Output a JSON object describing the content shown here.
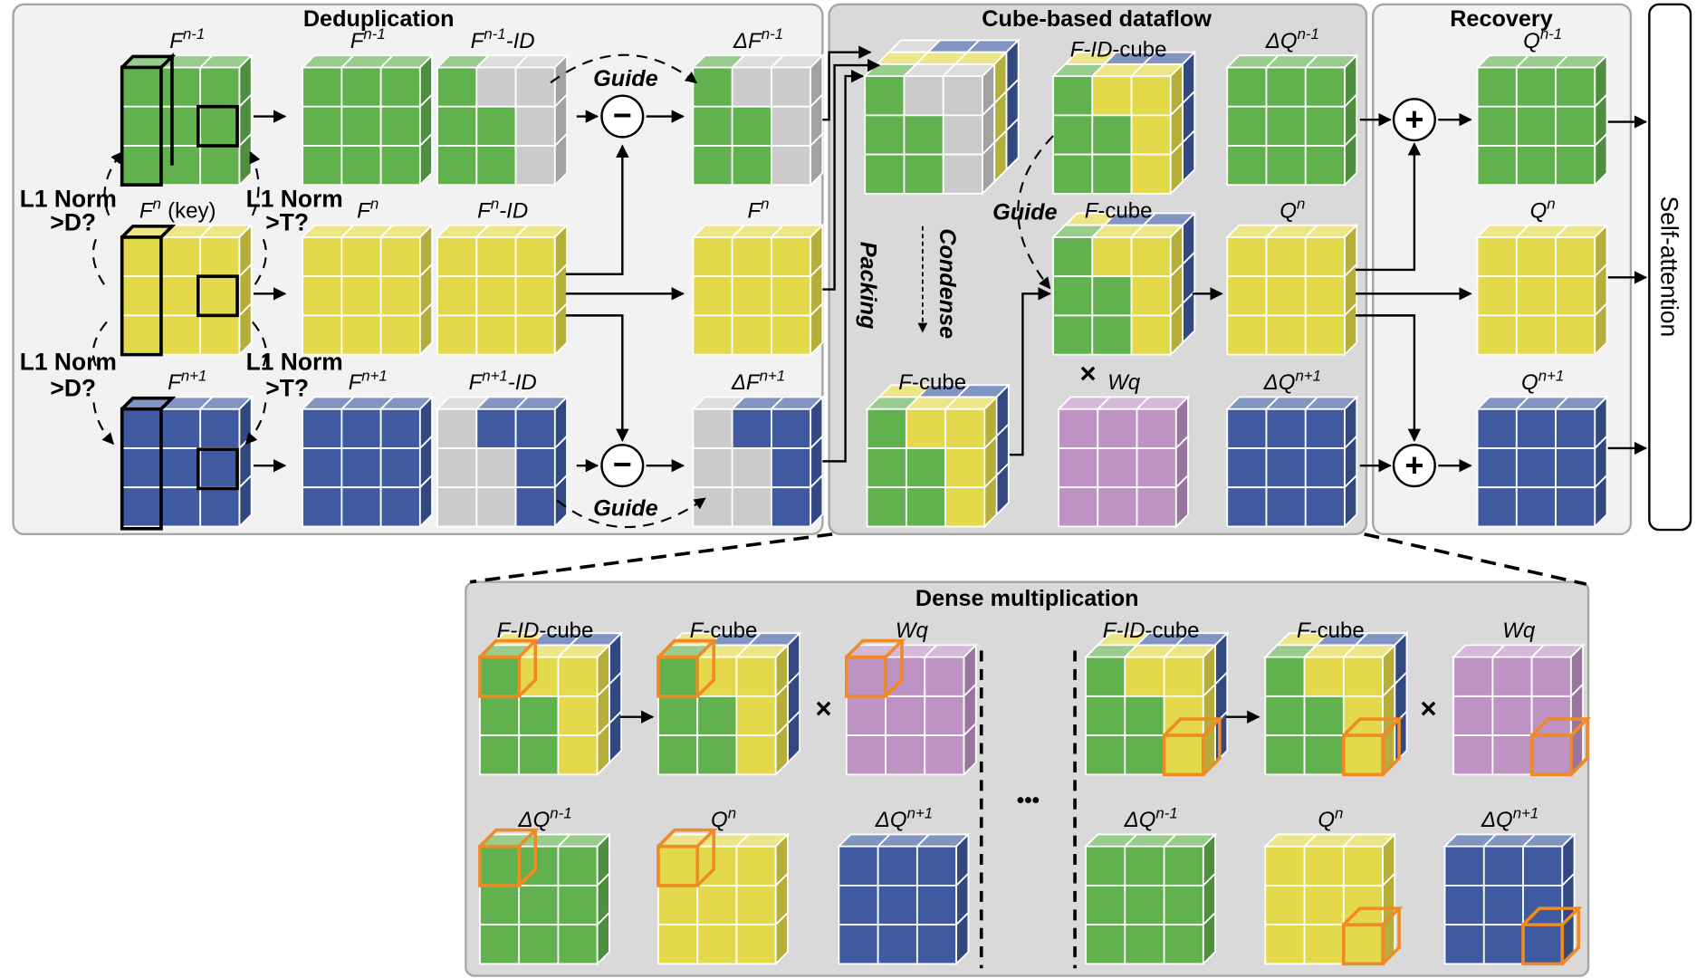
{
  "colors": {
    "G": "#62b14f",
    "Y": "#e3d94a",
    "B": "#3f5aa0",
    "P": "#be93c4",
    "X": "#cbcbcb",
    "highlight": "#f08a24",
    "panel_light": "#f2f2f2",
    "panel_dark": "#d9d9d9"
  },
  "sections": {
    "dedup": "Deduplication",
    "cube": "Cube-based dataflow",
    "recovery": "Recovery",
    "dense": "Dense multiplication",
    "self_attention": "Self-attention"
  },
  "annotations": {
    "l1_top_left": "L1 Norm",
    "l1_top_left_cond": ">D?",
    "l1_top_right": "L1 Norm",
    "l1_top_right_cond": ">T?",
    "l1_bot_left": "L1 Norm",
    "l1_bot_left_cond": ">D?",
    "l1_bot_right": "L1 Norm",
    "l1_bot_right_cond": ">T?",
    "key": "(key)",
    "guide_top": "Guide",
    "guide_bottom": "Guide",
    "guide_cube": "Guide",
    "packing": "Packing",
    "condense": "Condense",
    "minus": "−",
    "plus": "+",
    "times": "×",
    "ellipsis": "•••"
  },
  "cubes": [
    {
      "id": "f_nm1",
      "label": {
        "main": "F",
        "sup": "n-1",
        "tail": ""
      },
      "pattern": [
        "GGG",
        "GGG",
        "GGG"
      ]
    },
    {
      "id": "f_n",
      "label": {
        "main": "F",
        "sup": "n",
        "tail": ""
      },
      "pattern": [
        "YYY",
        "YYY",
        "YYY"
      ]
    },
    {
      "id": "f_np1",
      "label": {
        "main": "F",
        "sup": "n+1",
        "tail": ""
      },
      "pattern": [
        "BBB",
        "BBB",
        "BBB"
      ]
    },
    {
      "id": "f_nm1_b",
      "label": {
        "main": "F",
        "sup": "n-1",
        "tail": ""
      },
      "pattern": [
        "GGG",
        "GGG",
        "GGG"
      ]
    },
    {
      "id": "f_n_b",
      "label": {
        "main": "F",
        "sup": "n",
        "tail": ""
      },
      "pattern": [
        "YYY",
        "YYY",
        "YYY"
      ]
    },
    {
      "id": "f_np1_b",
      "label": {
        "main": "F",
        "sup": "n+1",
        "tail": ""
      },
      "pattern": [
        "BBB",
        "BBB",
        "BBB"
      ]
    },
    {
      "id": "fid_nm1",
      "label": {
        "main": "F",
        "sup": "n-1",
        "tail": "-ID"
      },
      "pattern": [
        "GXX",
        "GGX",
        "GGX"
      ]
    },
    {
      "id": "fid_n",
      "label": {
        "main": "F",
        "sup": "n",
        "tail": "-ID"
      },
      "pattern": [
        "YYY",
        "YYY",
        "YYY"
      ]
    },
    {
      "id": "fid_np1",
      "label": {
        "main": "F",
        "sup": "n+1",
        "tail": "-ID"
      },
      "pattern": [
        "XBB",
        "XXB",
        "XXB"
      ]
    },
    {
      "id": "df_nm1",
      "label": {
        "main": "ΔF",
        "sup": "n-1",
        "tail": ""
      },
      "pattern": [
        "GXX",
        "GGX",
        "GGX"
      ]
    },
    {
      "id": "df_n",
      "label": {
        "main": "F",
        "sup": "n",
        "tail": ""
      },
      "pattern": [
        "YYY",
        "YYY",
        "YYY"
      ]
    },
    {
      "id": "df_np1",
      "label": {
        "main": "ΔF",
        "sup": "n+1",
        "tail": ""
      },
      "pattern": [
        "XBB",
        "XXB",
        "XXB"
      ]
    },
    {
      "id": "packed",
      "label": {
        "main": "",
        "sup": "",
        "tail": ""
      },
      "pattern": [
        "GXX",
        "GGX",
        "GGX"
      ],
      "layers": [
        "YYY",
        "XBB"
      ]
    },
    {
      "id": "fidcube",
      "label": {
        "main": "F-ID",
        "sup": "",
        "tail": "-cube"
      },
      "pattern": [
        "GYY",
        "GGY",
        "GGY"
      ],
      "layers": [
        "YBB"
      ]
    },
    {
      "id": "fcube_mid",
      "label": {
        "main": "F",
        "sup": "",
        "tail": "-cube"
      },
      "pattern": [
        "GYY",
        "GGY",
        "GGY"
      ],
      "layers": [
        "YBB"
      ]
    },
    {
      "id": "fcube_low",
      "label": {
        "main": "F",
        "sup": "",
        "tail": "-cube"
      },
      "pattern": [
        "GYY",
        "GGY",
        "GGY"
      ],
      "layers": [
        "YBB"
      ]
    },
    {
      "id": "wq",
      "label": {
        "main": "Wq",
        "sup": "",
        "tail": ""
      },
      "pattern": [
        "PPP",
        "PPP",
        "PPP"
      ]
    },
    {
      "id": "dq_nm1",
      "label": {
        "main": "ΔQ",
        "sup": "n-1",
        "tail": ""
      },
      "pattern": [
        "GGG",
        "GGG",
        "GGG"
      ]
    },
    {
      "id": "q_n",
      "label": {
        "main": "Q",
        "sup": "n",
        "tail": ""
      },
      "pattern": [
        "YYY",
        "YYY",
        "YYY"
      ]
    },
    {
      "id": "dq_np1",
      "label": {
        "main": "ΔQ",
        "sup": "n+1",
        "tail": ""
      },
      "pattern": [
        "BBB",
        "BBB",
        "BBB"
      ]
    },
    {
      "id": "rq_nm1",
      "label": {
        "main": "Q",
        "sup": "n-1",
        "tail": ""
      },
      "pattern": [
        "GGG",
        "GGG",
        "GGG"
      ]
    },
    {
      "id": "rq_n",
      "label": {
        "main": "Q",
        "sup": "n",
        "tail": ""
      },
      "pattern": [
        "YYY",
        "YYY",
        "YYY"
      ]
    },
    {
      "id": "rq_np1",
      "label": {
        "main": "Q",
        "sup": "n+1",
        "tail": ""
      },
      "pattern": [
        "BBB",
        "BBB",
        "BBB"
      ]
    },
    {
      "id": "d_fid1",
      "label": {
        "main": "F-ID",
        "sup": "",
        "tail": "-cube"
      },
      "pattern": [
        "GYY",
        "GGY",
        "GGY"
      ],
      "layers": [
        "YBB"
      ],
      "hl": "front00"
    },
    {
      "id": "d_fc1",
      "label": {
        "main": "F",
        "sup": "",
        "tail": "-cube"
      },
      "pattern": [
        "GYY",
        "GGY",
        "GGY"
      ],
      "layers": [
        "YBB"
      ],
      "hl": "front00"
    },
    {
      "id": "d_wq1",
      "label": {
        "main": "Wq",
        "sup": "",
        "tail": ""
      },
      "pattern": [
        "PPP",
        "PPP",
        "PPP"
      ],
      "hl": "front00"
    },
    {
      "id": "d_fid2",
      "label": {
        "main": "F-ID",
        "sup": "",
        "tail": "-cube"
      },
      "pattern": [
        "GYY",
        "GGY",
        "GGY"
      ],
      "layers": [
        "YBB"
      ],
      "hl": "front22"
    },
    {
      "id": "d_fc2",
      "label": {
        "main": "F",
        "sup": "",
        "tail": "-cube"
      },
      "pattern": [
        "GYY",
        "GGY",
        "GGY"
      ],
      "layers": [
        "YBB"
      ],
      "hl": "front22"
    },
    {
      "id": "d_wq2",
      "label": {
        "main": "Wq",
        "sup": "",
        "tail": ""
      },
      "pattern": [
        "PPP",
        "PPP",
        "PPP"
      ],
      "hl": "front22"
    },
    {
      "id": "d_dq1",
      "label": {
        "main": "ΔQ",
        "sup": "n-1",
        "tail": ""
      },
      "pattern": [
        "GGG",
        "GGG",
        "GGG"
      ],
      "hl": "front00"
    },
    {
      "id": "d_q1",
      "label": {
        "main": "Q",
        "sup": "n",
        "tail": ""
      },
      "pattern": [
        "YYY",
        "YYY",
        "YYY"
      ],
      "hl": "front00"
    },
    {
      "id": "d_dq1b",
      "label": {
        "main": "ΔQ",
        "sup": "n+1",
        "tail": ""
      },
      "pattern": [
        "BBB",
        "BBB",
        "BBB"
      ]
    },
    {
      "id": "d_dq2",
      "label": {
        "main": "ΔQ",
        "sup": "n-1",
        "tail": ""
      },
      "pattern": [
        "GGG",
        "GGG",
        "GGG"
      ]
    },
    {
      "id": "d_q2",
      "label": {
        "main": "Q",
        "sup": "n",
        "tail": ""
      },
      "pattern": [
        "YYY",
        "YYY",
        "YYY"
      ],
      "hl": "front22"
    },
    {
      "id": "d_dq2b",
      "label": {
        "main": "ΔQ",
        "sup": "n+1",
        "tail": ""
      },
      "pattern": [
        "BBB",
        "BBB",
        "BBB"
      ],
      "hl": "front22"
    }
  ]
}
